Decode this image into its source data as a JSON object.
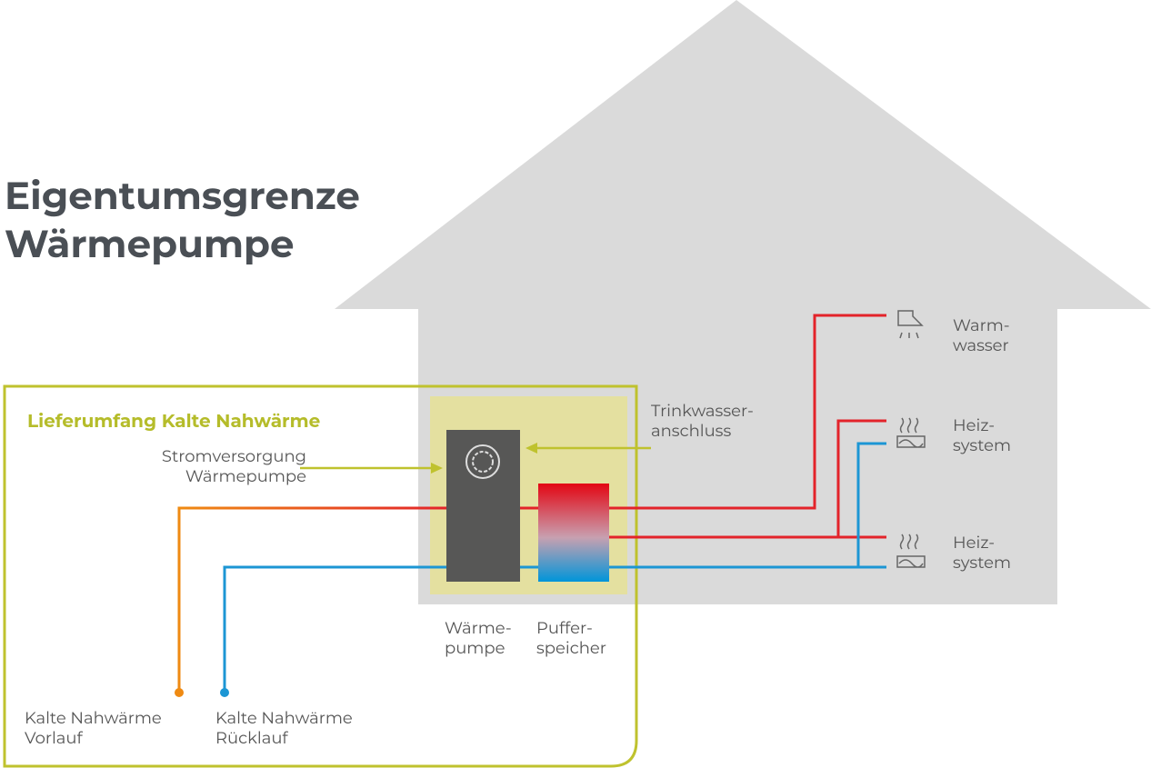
{
  "title": [
    "Eigentumsgrenze",
    "Wärmepumpe"
  ],
  "delivery_scope": "Lieferumfang Kalte Nahwärme",
  "power_supply": [
    "Stromversorgung",
    "Wärmepumpe"
  ],
  "drinking_water": [
    "Trinkwasser-",
    "anschluss"
  ],
  "hot_water": [
    "Warm-",
    "wasser"
  ],
  "heating_1": [
    "Heiz-",
    "system"
  ],
  "heating_2": [
    "Heiz-",
    "system"
  ],
  "heat_pump": [
    "Wärme-",
    "pumpe"
  ],
  "buffer": [
    "Puffer-",
    "speicher"
  ],
  "supply": [
    "Kalte Nahwärme",
    "Vorlauf"
  ],
  "return": [
    "Kalte Nahwärme",
    "Rücklauf"
  ]
}
